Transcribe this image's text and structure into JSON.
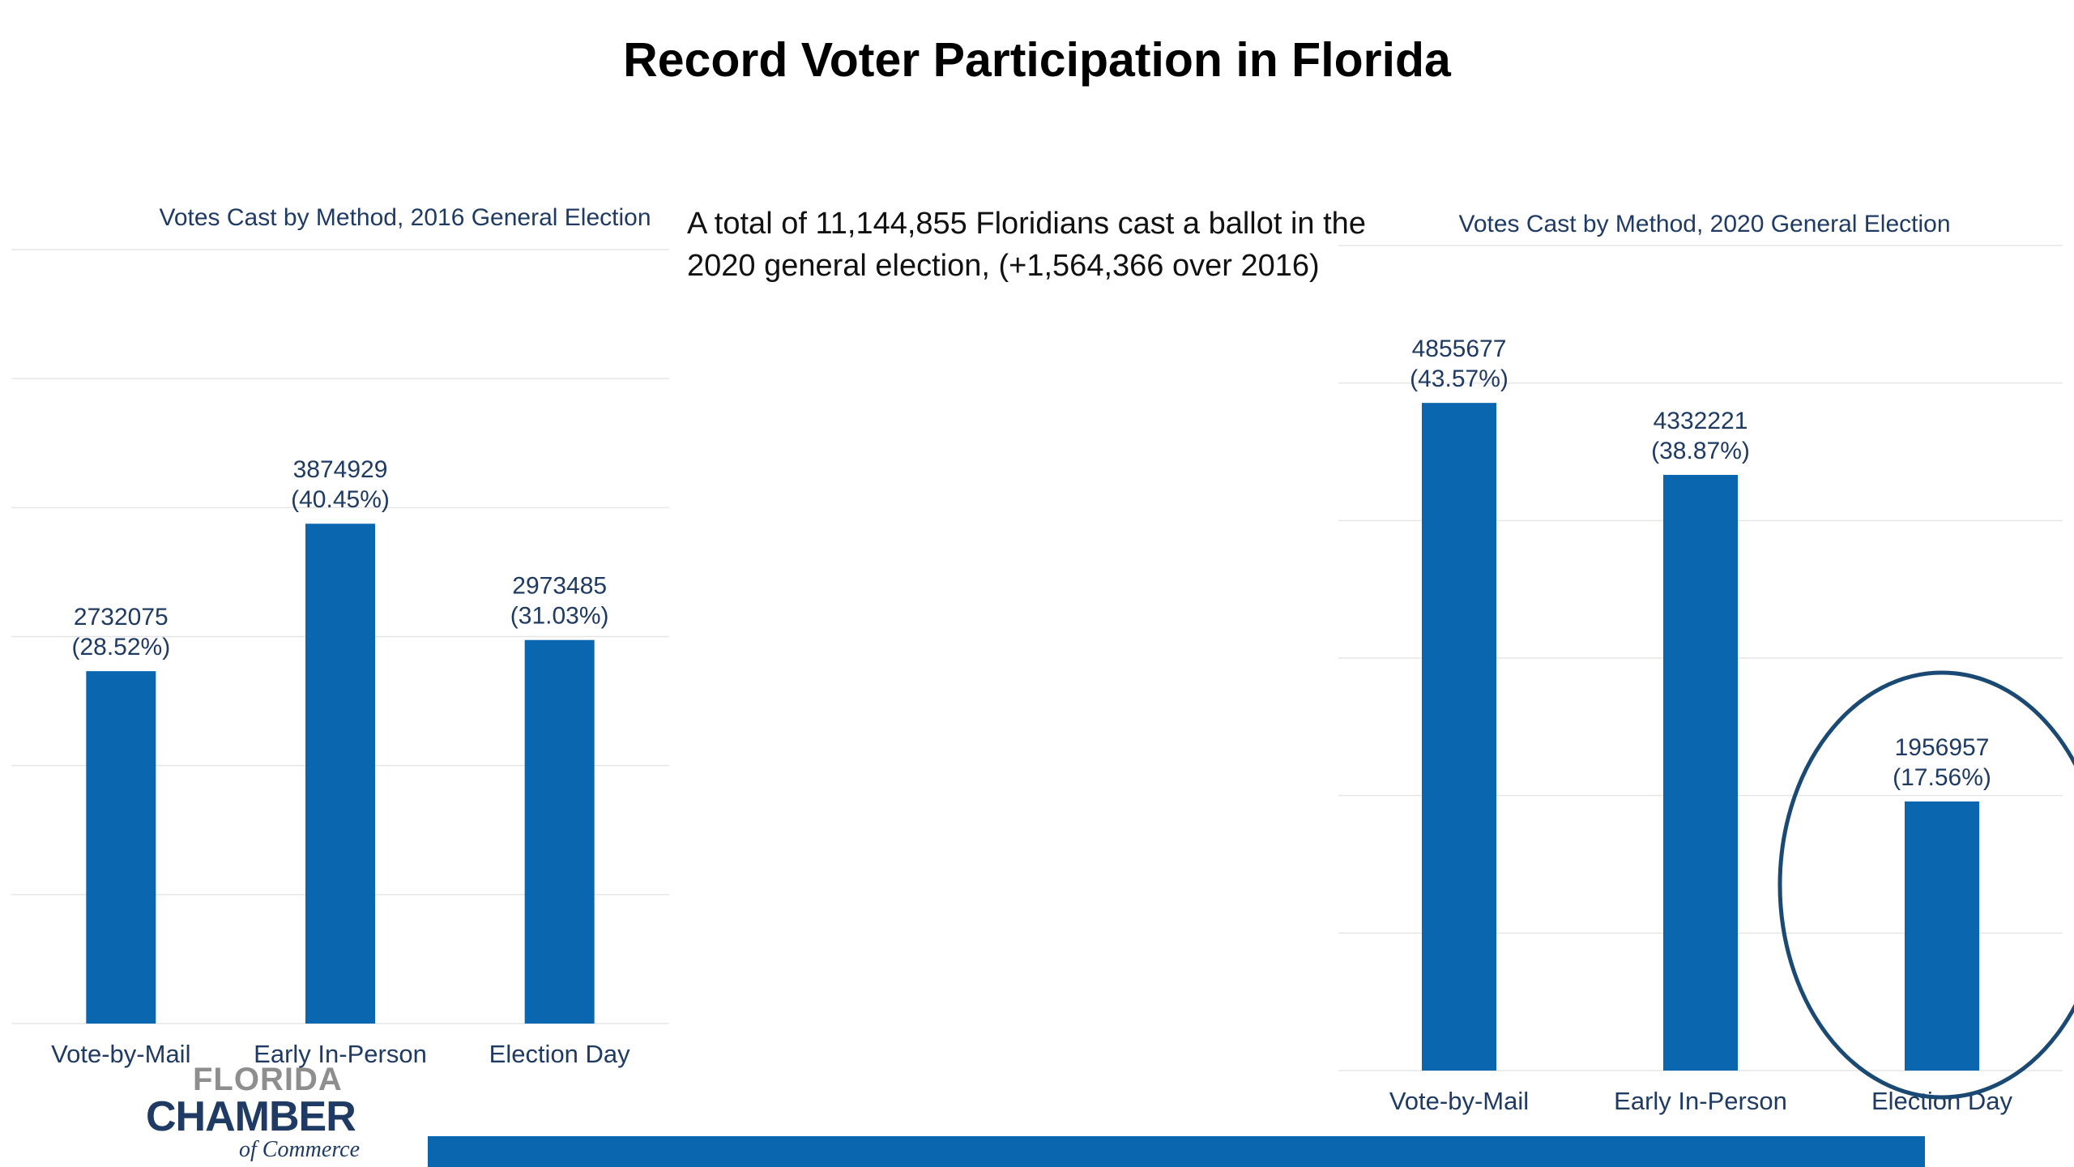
{
  "title": "Record Voter Participation in Florida",
  "summary": "A total of 11,144,855 Floridians cast a ballot in the 2020 general election, (+1,564,366 over 2016)",
  "logo": {
    "line1": "FLORIDA",
    "line2": "CHAMBER",
    "line3": "of Commerce"
  },
  "colors": {
    "bar": "#0b66b0",
    "chart_text": "#1f3a63",
    "gridline": "#e6e6e6",
    "highlight": "#1a4a73"
  },
  "chart_data": [
    {
      "type": "bar",
      "title": "Votes Cast by Method, 2016 General Election",
      "categories": [
        "Vote-by-Mail",
        "Early In-Person",
        "Election Day"
      ],
      "values": [
        2732075,
        3874929,
        2973485
      ],
      "data_labels": [
        [
          "2732075",
          "(28.52%)"
        ],
        [
          "3874929",
          "(40.45%)"
        ],
        [
          "2973485",
          "(31.03%)"
        ]
      ],
      "ylim": [
        0,
        6000000
      ],
      "grid": true,
      "legend": "none"
    },
    {
      "type": "bar",
      "title": "Votes Cast by Method, 2020 General Election",
      "categories": [
        "Vote-by-Mail",
        "Early In-Person",
        "Election Day"
      ],
      "values": [
        4855677,
        4332221,
        1956957
      ],
      "data_labels": [
        [
          "4855677",
          "(43.57%)"
        ],
        [
          "4332221",
          "(38.87%)"
        ],
        [
          "1956957",
          "(17.56%)"
        ]
      ],
      "ylim": [
        0,
        6000000
      ],
      "grid": true,
      "legend": "none",
      "highlighted_category": "Election Day"
    }
  ]
}
